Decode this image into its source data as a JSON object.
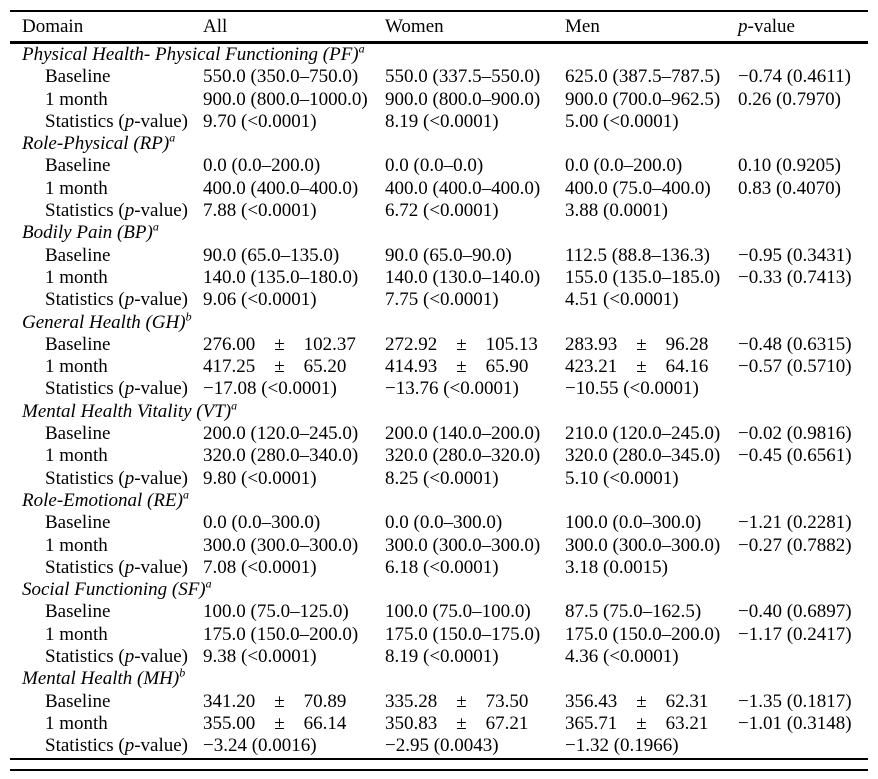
{
  "page": {
    "background_color": "#ffffff",
    "text_color": "#000000",
    "rule_color": "#000000"
  },
  "table": {
    "header": {
      "columns": [
        {
          "text": "Domain"
        },
        {
          "text": "All"
        },
        {
          "text": "Women"
        },
        {
          "text": "Men"
        },
        {
          "parts": [
            {
              "t": "p",
              "i": true
            },
            {
              "t": "-value"
            }
          ]
        }
      ]
    },
    "sections": [
      {
        "title": "Physical Health- Physical Functioning (PF)",
        "sup": "a",
        "rows": [
          {
            "label": [
              {
                "t": "Baseline"
              }
            ],
            "cells": [
              "550.0 (350.0–750.0)",
              "550.0 (337.5–550.0)",
              "625.0 (387.5–787.5)",
              "−0.74 (0.4611)"
            ]
          },
          {
            "label": [
              {
                "t": "1 month"
              }
            ],
            "cells": [
              "900.0 (800.0–1000.0)",
              "900.0 (800.0–900.0)",
              "900.0 (700.0–962.5)",
              "0.26 (0.7970)"
            ]
          },
          {
            "label": [
              {
                "t": "Statistics ("
              },
              {
                "t": "p",
                "i": true
              },
              {
                "t": "-value)"
              }
            ],
            "cells": [
              "9.70 (<0.0001)",
              "8.19 (<0.0001)",
              "5.00 (<0.0001)",
              ""
            ]
          }
        ]
      },
      {
        "title": "Role-Physical (RP)",
        "sup": "a",
        "rows": [
          {
            "label": [
              {
                "t": "Baseline"
              }
            ],
            "cells": [
              "0.0 (0.0–200.0)",
              "0.0 (0.0–0.0)",
              "0.0 (0.0–200.0)",
              "0.10 (0.9205)"
            ]
          },
          {
            "label": [
              {
                "t": "1 month"
              }
            ],
            "cells": [
              "400.0 (400.0–400.0)",
              "400.0 (400.0–400.0)",
              "400.0 (75.0–400.0)",
              "0.83 (0.4070)"
            ]
          },
          {
            "label": [
              {
                "t": "Statistics ("
              },
              {
                "t": "p",
                "i": true
              },
              {
                "t": "-value)"
              }
            ],
            "cells": [
              "7.88 (<0.0001)",
              "6.72 (<0.0001)",
              "3.88 (0.0001)",
              ""
            ]
          }
        ]
      },
      {
        "title": "Bodily Pain (BP)",
        "sup": "a",
        "rows": [
          {
            "label": [
              {
                "t": "Baseline"
              }
            ],
            "cells": [
              "90.0 (65.0–135.0)",
              "90.0 (65.0–90.0)",
              "112.5 (88.8–136.3)",
              "−0.95 (0.3431)"
            ]
          },
          {
            "label": [
              {
                "t": "1 month"
              }
            ],
            "cells": [
              "140.0 (135.0–180.0)",
              "140.0 (130.0–140.0)",
              "155.0 (135.0–185.0)",
              "−0.33 (0.7413)"
            ]
          },
          {
            "label": [
              {
                "t": "Statistics ("
              },
              {
                "t": "p",
                "i": true
              },
              {
                "t": "-value)"
              }
            ],
            "cells": [
              "9.06 (<0.0001)",
              "7.75 (<0.0001)",
              "4.51 (<0.0001)",
              ""
            ]
          }
        ]
      },
      {
        "title": "General Health (GH)",
        "sup": "b",
        "rows": [
          {
            "label": [
              {
                "t": "Baseline"
              }
            ],
            "cells": [
              "276.00  ±  102.37",
              "272.92  ±  105.13",
              "283.93  ±  96.28",
              "−0.48 (0.6315)"
            ]
          },
          {
            "label": [
              {
                "t": "1 month"
              }
            ],
            "cells": [
              "417.25  ±  65.20",
              "414.93  ±  65.90",
              "423.21  ±  64.16",
              "−0.57 (0.5710)"
            ]
          },
          {
            "label": [
              {
                "t": "Statistics ("
              },
              {
                "t": "p",
                "i": true
              },
              {
                "t": "-value)"
              }
            ],
            "cells": [
              "−17.08 (<0.0001)",
              "−13.76 (<0.0001)",
              "−10.55 (<0.0001)",
              ""
            ]
          }
        ]
      },
      {
        "title": "Mental Health Vitality (VT)",
        "sup": "a",
        "rows": [
          {
            "label": [
              {
                "t": "Baseline"
              }
            ],
            "cells": [
              "200.0 (120.0–245.0)",
              "200.0 (140.0–200.0)",
              "210.0 (120.0–245.0)",
              "−0.02 (0.9816)"
            ]
          },
          {
            "label": [
              {
                "t": "1 month"
              }
            ],
            "cells": [
              "320.0 (280.0–340.0)",
              "320.0 (280.0–320.0)",
              "320.0 (280.0–345.0)",
              "−0.45 (0.6561)"
            ]
          },
          {
            "label": [
              {
                "t": "Statistics ("
              },
              {
                "t": "p",
                "i": true
              },
              {
                "t": "-value)"
              }
            ],
            "cells": [
              "9.80 (<0.0001)",
              "8.25 (<0.0001)",
              "5.10 (<0.0001)",
              ""
            ]
          }
        ]
      },
      {
        "title": "Role-Emotional (RE)",
        "sup": "a",
        "rows": [
          {
            "label": [
              {
                "t": "Baseline"
              }
            ],
            "cells": [
              "0.0 (0.0–300.0)",
              "0.0 (0.0–300.0)",
              "100.0 (0.0–300.0)",
              "−1.21 (0.2281)"
            ]
          },
          {
            "label": [
              {
                "t": "1 month"
              }
            ],
            "cells": [
              "300.0 (300.0–300.0)",
              "300.0 (300.0–300.0)",
              "300.0 (300.0–300.0)",
              "−0.27 (0.7882)"
            ]
          },
          {
            "label": [
              {
                "t": "Statistics ("
              },
              {
                "t": "p",
                "i": true
              },
              {
                "t": "-value)"
              }
            ],
            "cells": [
              "7.08 (<0.0001)",
              "6.18 (<0.0001)",
              "3.18 (0.0015)",
              ""
            ]
          }
        ]
      },
      {
        "title": "Social Functioning (SF)",
        "sup": "a",
        "rows": [
          {
            "label": [
              {
                "t": "Baseline"
              }
            ],
            "cells": [
              "100.0 (75.0–125.0)",
              "100.0 (75.0–100.0)",
              "87.5 (75.0–162.5)",
              "−0.40 (0.6897)"
            ]
          },
          {
            "label": [
              {
                "t": "1 month"
              }
            ],
            "cells": [
              "175.0 (150.0–200.0)",
              "175.0 (150.0–175.0)",
              "175.0 (150.0–200.0)",
              "−1.17 (0.2417)"
            ]
          },
          {
            "label": [
              {
                "t": "Statistics ("
              },
              {
                "t": "p",
                "i": true
              },
              {
                "t": "-value)"
              }
            ],
            "cells": [
              "9.38 (<0.0001)",
              "8.19 (<0.0001)",
              "4.36 (<0.0001)",
              ""
            ]
          }
        ]
      },
      {
        "title": "Mental Health (MH)",
        "sup": "b",
        "rows": [
          {
            "label": [
              {
                "t": "Baseline"
              }
            ],
            "cells": [
              "341.20  ±  70.89",
              "335.28  ±  73.50",
              "356.43  ±  62.31",
              "−1.35 (0.1817)"
            ]
          },
          {
            "label": [
              {
                "t": "1 month"
              }
            ],
            "cells": [
              "355.00  ±  66.14",
              "350.83  ±  67.21",
              "365.71  ±  63.21",
              "−1.01 (0.3148)"
            ]
          },
          {
            "label": [
              {
                "t": "Statistics ("
              },
              {
                "t": "p",
                "i": true
              },
              {
                "t": "-value)"
              }
            ],
            "cells": [
              "−3.24 (0.0016)",
              "−2.95 (0.0043)",
              "−1.32 (0.1966)",
              ""
            ]
          }
        ]
      }
    ]
  }
}
